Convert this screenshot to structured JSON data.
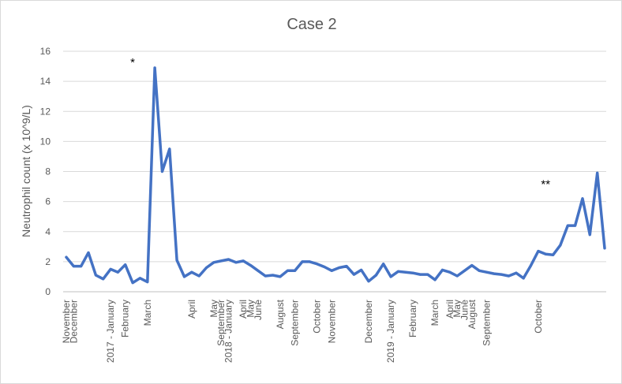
{
  "chart_data": {
    "type": "line",
    "title": "Case 2",
    "ylabel": "Neutrophil count (x 10^9/L)",
    "xlabel": "",
    "ylim": [
      0,
      16
    ],
    "yticks": [
      0,
      2,
      4,
      6,
      8,
      10,
      12,
      14,
      16
    ],
    "grid": true,
    "legend": "none",
    "line_color": "#4472c4",
    "x_labels": [
      {
        "index": 0,
        "label": "November"
      },
      {
        "index": 1,
        "label": "December"
      },
      {
        "index": 6,
        "label": "2017 - January"
      },
      {
        "index": 8,
        "label": "February"
      },
      {
        "index": 11,
        "label": "March"
      },
      {
        "index": 17,
        "label": "April"
      },
      {
        "index": 20,
        "label": "May"
      },
      {
        "index": 21,
        "label": "September"
      },
      {
        "index": 22,
        "label": "2018 - January"
      },
      {
        "index": 24,
        "label": "April"
      },
      {
        "index": 25,
        "label": "May"
      },
      {
        "index": 26,
        "label": "June"
      },
      {
        "index": 29,
        "label": "August"
      },
      {
        "index": 31,
        "label": "September"
      },
      {
        "index": 34,
        "label": "October"
      },
      {
        "index": 36,
        "label": "November"
      },
      {
        "index": 41,
        "label": "December"
      },
      {
        "index": 44,
        "label": "2019 - January"
      },
      {
        "index": 47,
        "label": "February"
      },
      {
        "index": 50,
        "label": "March"
      },
      {
        "index": 52,
        "label": "April"
      },
      {
        "index": 53,
        "label": "May"
      },
      {
        "index": 54,
        "label": "June"
      },
      {
        "index": 55,
        "label": "August"
      },
      {
        "index": 57,
        "label": "September"
      },
      {
        "index": 64,
        "label": "October"
      }
    ],
    "series": [
      {
        "values": [
          2.3,
          1.7,
          1.7,
          2.6,
          1.1,
          0.85,
          1.5,
          1.3,
          1.8,
          0.6,
          0.9,
          0.65,
          14.9,
          8.0,
          9.5,
          2.1,
          1.0,
          1.3,
          1.05,
          1.6,
          1.95,
          2.05,
          2.15,
          1.95,
          2.05,
          1.75,
          1.4,
          1.05,
          1.1,
          1.0,
          1.4,
          1.4,
          2.0,
          2.0,
          1.85,
          1.65,
          1.4,
          1.6,
          1.7,
          1.15,
          1.45,
          0.7,
          1.1,
          1.85,
          1.0,
          1.35,
          1.3,
          1.25,
          1.15,
          1.15,
          0.8,
          1.45,
          1.3,
          1.05,
          1.4,
          1.75,
          1.4,
          1.3,
          1.2,
          1.15,
          1.05,
          1.25,
          0.9,
          1.75,
          2.7,
          2.5,
          2.45,
          3.1,
          4.4,
          4.4,
          6.2,
          3.8,
          7.9,
          2.9
        ]
      }
    ],
    "annotations": [
      {
        "text": "*",
        "index": 9,
        "y": 15.0
      },
      {
        "text": "**",
        "index": 65,
        "y": 6.9
      }
    ]
  }
}
